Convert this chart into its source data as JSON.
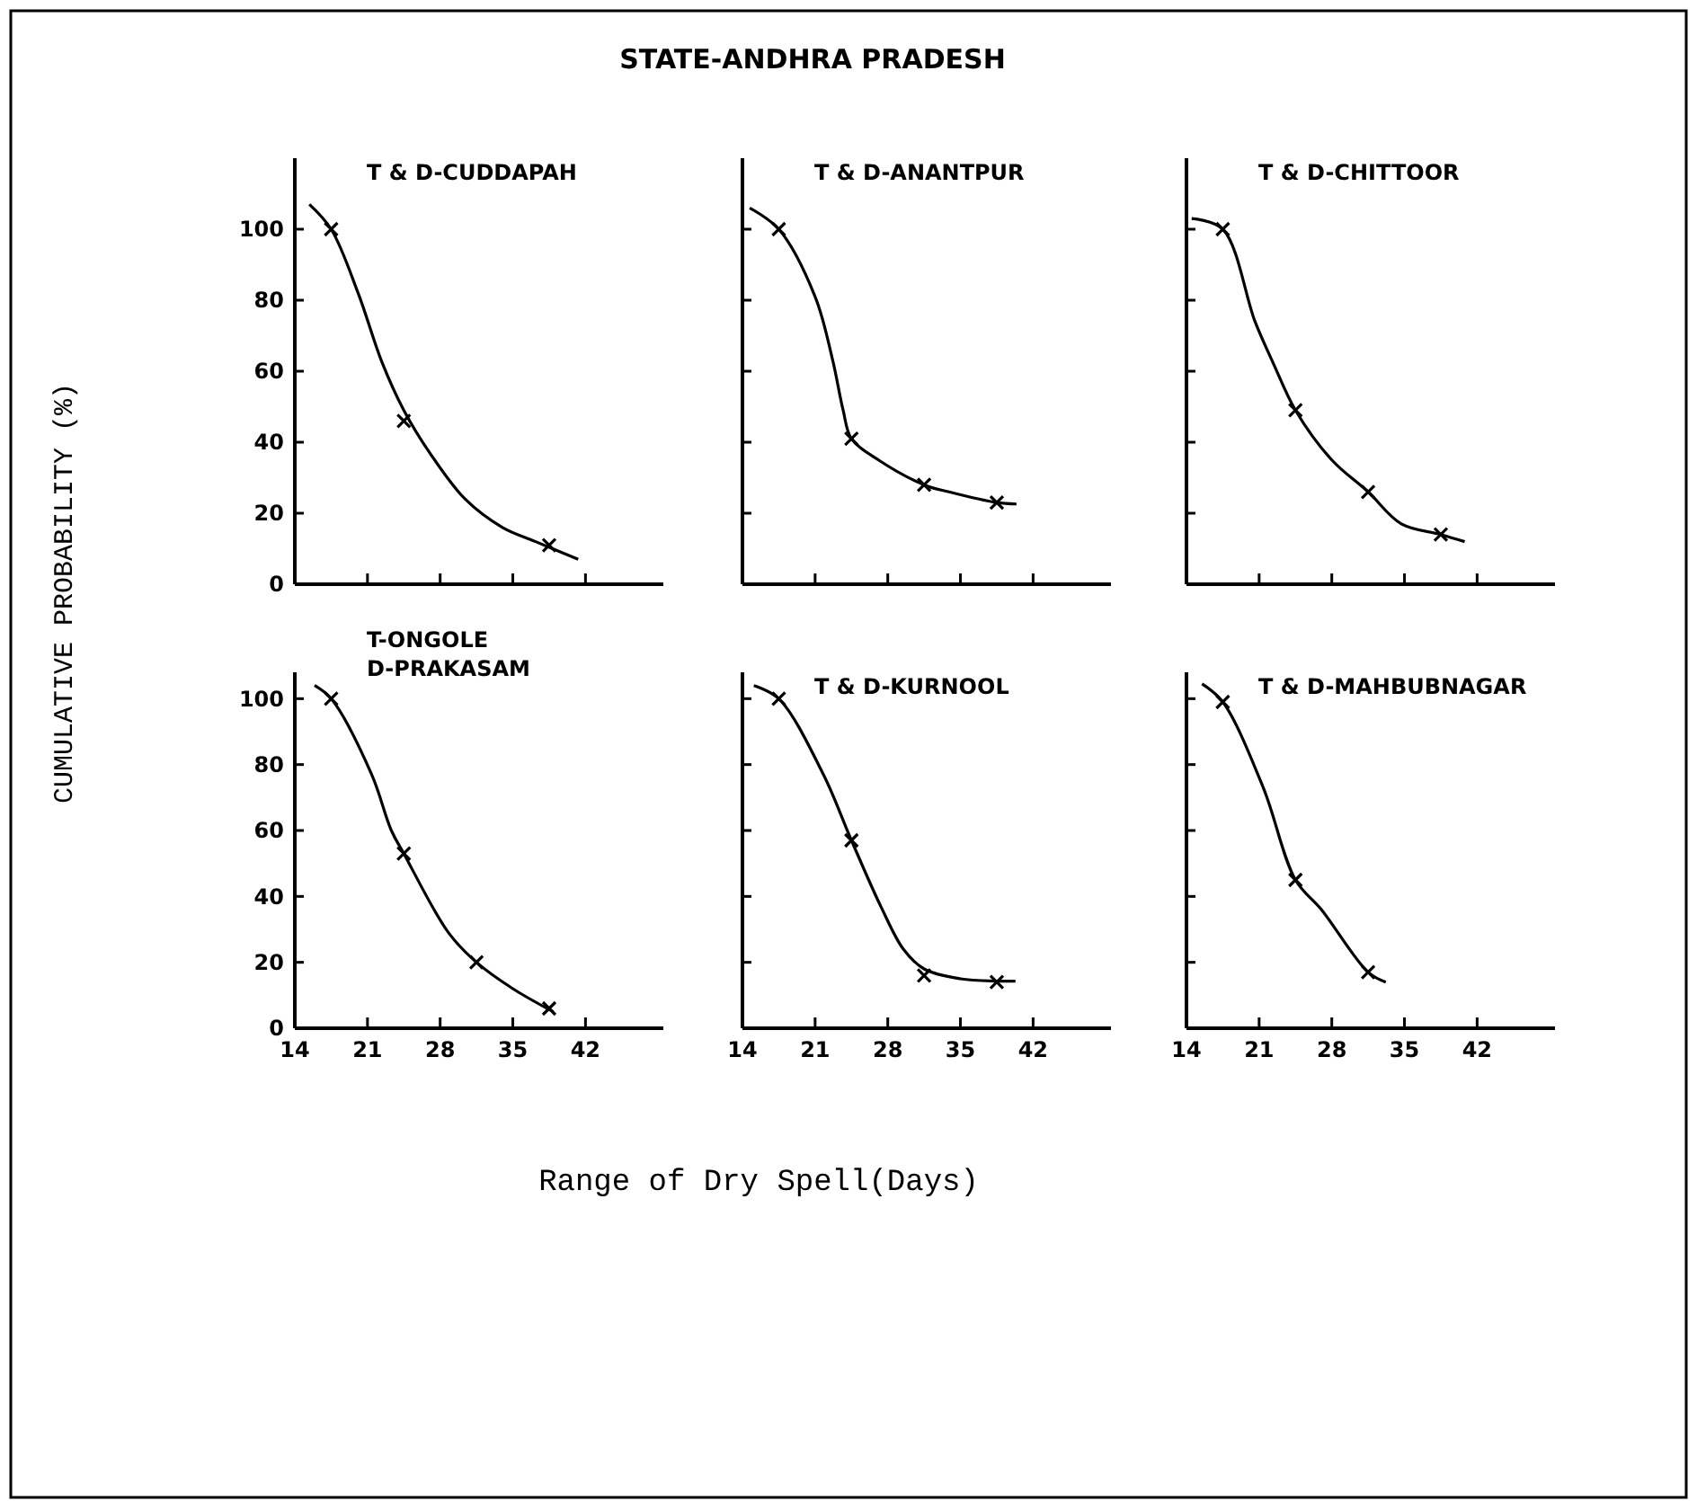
{
  "chart_data": [
    {
      "type": "line",
      "title": "T & D-CUDDAPAH",
      "ylabel": "CUMULATIVE PROBABILITY (%)",
      "xlim": [
        14,
        49.5
      ],
      "ylim": [
        0,
        120
      ],
      "xticks": [
        {
          "value": 14,
          "label": null
        },
        {
          "value": 21,
          "label": null
        },
        {
          "value": 28,
          "label": null
        },
        {
          "value": 35,
          "label": null
        },
        {
          "value": 42,
          "label": null
        }
      ],
      "yticks": [
        0,
        20,
        40,
        60,
        80,
        100
      ],
      "tick_labels": "y",
      "grid": false,
      "line_style": "solid",
      "series": [
        {
          "color": "#000000",
          "x": [
            15.4,
            17.5,
            20.1,
            22.4,
            24.5,
            27,
            30.4,
            34,
            37.2,
            41.3
          ],
          "values": [
            107,
            100,
            82,
            62.5,
            49,
            37,
            24,
            16,
            12,
            7
          ]
        },
        {
          "type": "scatter",
          "marker": "cross",
          "color": "#000000",
          "x": [
            17.5,
            24.5,
            38.5
          ],
          "values": [
            100,
            46,
            11
          ]
        }
      ]
    },
    {
      "type": "line",
      "title": "T & D-ANANTPUR",
      "annotations": [
        "STATE-ANDHRA PRADESH"
      ],
      "xlim": [
        14,
        49.5
      ],
      "ylim": [
        0,
        120
      ],
      "xticks": [
        {
          "value": 14,
          "label": null
        },
        {
          "value": 21,
          "label": null
        },
        {
          "value": 28,
          "label": null
        },
        {
          "value": 35,
          "label": null
        },
        {
          "value": 42,
          "label": null
        }
      ],
      "yticks": [
        {
          "value": 0,
          "label": null
        },
        {
          "value": 20,
          "label": null
        },
        {
          "value": 40,
          "label": null
        },
        {
          "value": 60,
          "label": null
        },
        {
          "value": 80,
          "label": null
        },
        {
          "value": 100,
          "label": null
        }
      ],
      "tick_labels": false,
      "grid": false,
      "line_style": "solid",
      "series": [
        {
          "color": "#000000",
          "x": [
            14.7,
            17.5,
            21,
            22.7,
            23.7,
            24.5,
            27.1,
            31.5,
            33.9,
            38.5,
            40.4
          ],
          "values": [
            106,
            100,
            81,
            63,
            49,
            41,
            35,
            28,
            26,
            23,
            22.6
          ]
        },
        {
          "type": "scatter",
          "marker": "cross",
          "color": "#000000",
          "x": [
            17.5,
            24.5,
            31.5,
            38.5
          ],
          "values": [
            100,
            41,
            28,
            23
          ]
        }
      ]
    },
    {
      "type": "line",
      "title": "T & D-CHITTOOR",
      "xlim": [
        14,
        49.5
      ],
      "ylim": [
        0,
        120
      ],
      "xticks": [
        {
          "value": 14,
          "label": null
        },
        {
          "value": 21,
          "label": null
        },
        {
          "value": 28,
          "label": null
        },
        {
          "value": 35,
          "label": null
        },
        {
          "value": 42,
          "label": null
        }
      ],
      "yticks": [
        {
          "value": 0,
          "label": null
        },
        {
          "value": 20,
          "label": null
        },
        {
          "value": 40,
          "label": null
        },
        {
          "value": 60,
          "label": null
        },
        {
          "value": 80,
          "label": null
        },
        {
          "value": 100,
          "label": null
        }
      ],
      "tick_labels": false,
      "grid": false,
      "line_style": "solid",
      "series": [
        {
          "color": "#000000",
          "x": [
            14.5,
            17.5,
            20.6,
            22.4,
            24.5,
            28,
            31.5,
            34.7,
            38.5,
            40.8
          ],
          "values": [
            103,
            100,
            74,
            62,
            49,
            35,
            26,
            17,
            14,
            12
          ]
        },
        {
          "type": "scatter",
          "marker": "cross",
          "color": "#000000",
          "x": [
            17.5,
            24.5,
            31.5,
            38.5
          ],
          "values": [
            100,
            49,
            26,
            14
          ]
        }
      ]
    },
    {
      "type": "line",
      "title": "T-ONGOLE\nD-PRAKASAM",
      "xlim": [
        14,
        49.5
      ],
      "ylim": [
        0,
        108
      ],
      "xticks": [
        14,
        21,
        28,
        35,
        42
      ],
      "yticks": [
        0,
        20,
        40,
        60,
        80,
        100
      ],
      "grid": false,
      "line_style": "solid",
      "series": [
        {
          "color": "#000000",
          "x": [
            15.9,
            17.5,
            21.4,
            23.3,
            24.5,
            28.8,
            31.5,
            35,
            38.9
          ],
          "values": [
            104,
            100,
            77,
            60,
            53,
            29,
            20,
            12,
            5
          ]
        },
        {
          "type": "scatter",
          "marker": "cross",
          "color": "#000000",
          "x": [
            17.5,
            24.5,
            31.5,
            38.5
          ],
          "values": [
            100,
            53,
            20,
            6
          ]
        }
      ]
    },
    {
      "type": "line",
      "title": "T & D-KURNOOL",
      "xlabel": "Range of Dry Spell(Days)",
      "xlim": [
        14,
        49.5
      ],
      "ylim": [
        0,
        108
      ],
      "xticks": [
        14,
        21,
        28,
        35,
        42
      ],
      "yticks": [
        {
          "value": 0,
          "label": null
        },
        {
          "value": 20,
          "label": null
        },
        {
          "value": 40,
          "label": null
        },
        {
          "value": 60,
          "label": null
        },
        {
          "value": 80,
          "label": null
        },
        {
          "value": 100,
          "label": null
        }
      ],
      "tick_labels": "x",
      "grid": false,
      "line_style": "solid",
      "series": [
        {
          "color": "#000000",
          "x": [
            15.1,
            17.5,
            21.8,
            24.5,
            27.4,
            29.5,
            31.5,
            35,
            38.5,
            40.3
          ],
          "values": [
            104,
            100,
            77,
            57,
            36.5,
            24,
            18,
            15,
            14.3,
            14.3
          ]
        },
        {
          "type": "scatter",
          "marker": "cross",
          "color": "#000000",
          "x": [
            17.5,
            24.5,
            31.5,
            38.5
          ],
          "values": [
            100,
            57,
            16,
            14
          ]
        }
      ]
    },
    {
      "type": "line",
      "title": "T & D-MAHBUBNAGAR",
      "xlim": [
        14,
        49.5
      ],
      "ylim": [
        0,
        108
      ],
      "xticks": [
        14,
        21,
        28,
        35,
        42
      ],
      "yticks": [
        {
          "value": 0,
          "label": null
        },
        {
          "value": 20,
          "label": null
        },
        {
          "value": 40,
          "label": null
        },
        {
          "value": 60,
          "label": null
        },
        {
          "value": 80,
          "label": null
        },
        {
          "value": 100,
          "label": null
        }
      ],
      "tick_labels": "x",
      "grid": false,
      "line_style": "solid",
      "series": [
        {
          "color": "#000000",
          "x": [
            15.5,
            17.5,
            21.4,
            24.5,
            27,
            31.5,
            33.2
          ],
          "values": [
            104.5,
            99,
            73,
            45,
            36,
            17,
            14
          ]
        },
        {
          "type": "scatter",
          "marker": "cross",
          "color": "#000000",
          "x": [
            17.5,
            24.5,
            31.5
          ],
          "values": [
            99,
            45,
            17
          ]
        }
      ]
    }
  ]
}
